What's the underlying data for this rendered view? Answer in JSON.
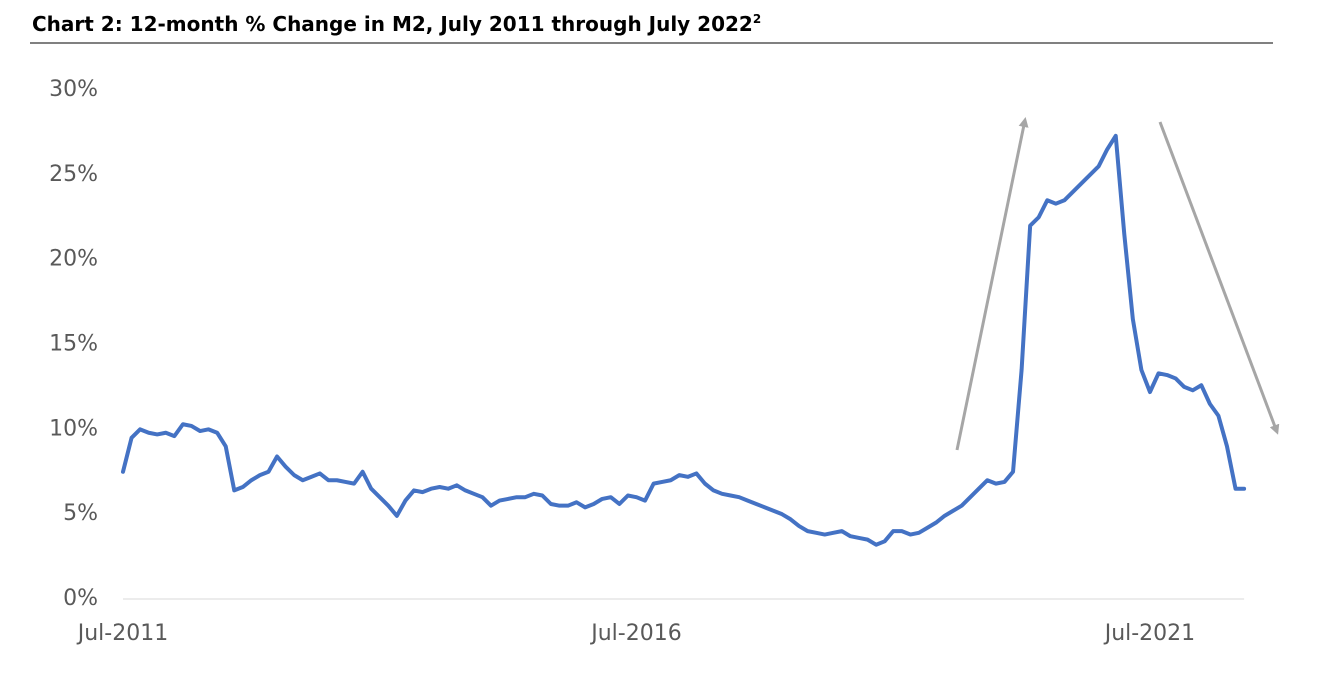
{
  "chart_data": {
    "type": "line",
    "title": "Chart 2: 12-month % Change in M2, July 2011 through July 2022",
    "title_footnote": "2",
    "categories": [
      "Jul-2011",
      null,
      null,
      null,
      null,
      null,
      null,
      null,
      null,
      null,
      null,
      null,
      null,
      null,
      null,
      null,
      null,
      null,
      null,
      null,
      null,
      null,
      null,
      null,
      null,
      null,
      null,
      null,
      null,
      null,
      null,
      null,
      null,
      null,
      null,
      null,
      null,
      null,
      null,
      null,
      null,
      null,
      null,
      null,
      null,
      null,
      null,
      null,
      null,
      null,
      null,
      null,
      null,
      null,
      null,
      null,
      null,
      null,
      null,
      null,
      "Jul-2016",
      null,
      null,
      null,
      null,
      null,
      null,
      null,
      null,
      null,
      null,
      null,
      null,
      null,
      null,
      null,
      null,
      null,
      null,
      null,
      null,
      null,
      null,
      null,
      null,
      null,
      null,
      null,
      null,
      null,
      null,
      null,
      null,
      null,
      null,
      null,
      null,
      null,
      null,
      null,
      null,
      null,
      null,
      null,
      null,
      null,
      null,
      null,
      null,
      null,
      null,
      null,
      null,
      null,
      null,
      null,
      null,
      null,
      null,
      null,
      "Jul-2021",
      null,
      null,
      null,
      null,
      null,
      null,
      null,
      null,
      null,
      null,
      null
    ],
    "series": [
      {
        "color": "#4472c4",
        "values": [
          7.5,
          9.5,
          10.0,
          9.8,
          9.7,
          9.8,
          9.6,
          10.3,
          10.2,
          9.9,
          10.0,
          9.8,
          9.0,
          6.4,
          6.6,
          7.0,
          7.3,
          7.5,
          8.4,
          7.8,
          7.3,
          7.0,
          7.2,
          7.4,
          7.0,
          7.0,
          6.9,
          6.8,
          7.5,
          6.5,
          6.0,
          5.5,
          4.9,
          5.8,
          6.4,
          6.3,
          6.5,
          6.6,
          6.5,
          6.7,
          6.4,
          6.2,
          6.0,
          5.5,
          5.8,
          5.9,
          6.0,
          6.0,
          6.2,
          6.1,
          5.6,
          5.5,
          5.5,
          5.7,
          5.4,
          5.6,
          5.9,
          6.0,
          5.6,
          6.1,
          6.0,
          5.8,
          6.8,
          6.9,
          7.0,
          7.3,
          7.2,
          7.4,
          6.8,
          6.4,
          6.2,
          6.1,
          6.0,
          5.8,
          5.6,
          5.4,
          5.2,
          5.0,
          4.7,
          4.3,
          4.0,
          3.9,
          3.8,
          3.9,
          4.0,
          3.7,
          3.6,
          3.5,
          3.2,
          3.4,
          4.0,
          4.0,
          3.8,
          3.9,
          4.2,
          4.5,
          4.9,
          5.2,
          5.5,
          6.0,
          6.5,
          7.0,
          6.8,
          6.9,
          7.5,
          13.5,
          22.0,
          22.5,
          23.5,
          23.3,
          23.5,
          24.0,
          24.5,
          25.0,
          25.5,
          26.5,
          27.3,
          21.5,
          16.5,
          13.5,
          12.2,
          13.3,
          13.2,
          13.0,
          12.5,
          12.3,
          12.6,
          11.5,
          10.8,
          9.0,
          6.5,
          6.5
        ]
      }
    ],
    "ylim": [
      0,
      30
    ],
    "yticks": [
      {
        "value": 0,
        "label": "0%"
      },
      {
        "value": 5,
        "label": "5%"
      },
      {
        "value": 10,
        "label": "10%"
      },
      {
        "value": 15,
        "label": "15%"
      },
      {
        "value": 20,
        "label": "20%"
      },
      {
        "value": 25,
        "label": "25%"
      },
      {
        "value": 30,
        "label": "30%"
      }
    ],
    "grid": false
  }
}
